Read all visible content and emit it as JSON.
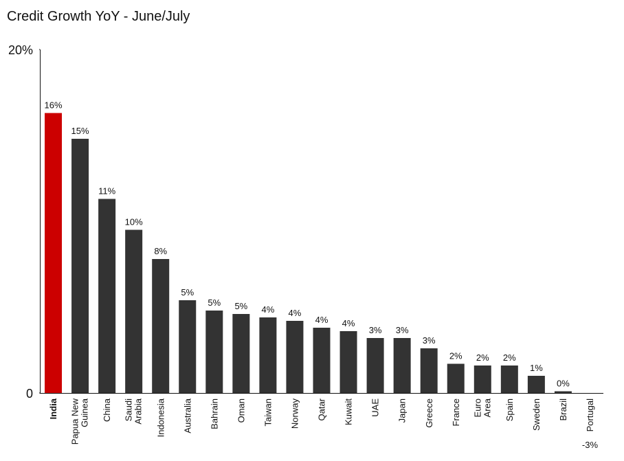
{
  "chart_data": {
    "type": "bar",
    "title": "Credit Growth YoY - June/July",
    "categories": [
      "India",
      "Papua New Guinea",
      "China",
      "Saudi Arabia",
      "Indonesia",
      "Australia",
      "Bahrain",
      "Oman",
      "Taiwan",
      "Norway",
      "Qatar",
      "Kuwait",
      "UAE",
      "Japan",
      "Greece",
      "France",
      "Euro Area",
      "Spain",
      "Sweden",
      "Brazil",
      "Portugal"
    ],
    "values": [
      16.3,
      14.8,
      11.3,
      9.5,
      7.8,
      5.4,
      4.8,
      4.6,
      4.4,
      4.2,
      3.8,
      3.6,
      3.2,
      3.2,
      2.6,
      1.7,
      1.6,
      1.6,
      1.0,
      0.1,
      -3
    ],
    "value_labels": [
      "16%",
      "15%",
      "11%",
      "10%",
      "8%",
      "5%",
      "5%",
      "5%",
      "4%",
      "4%",
      "4%",
      "4%",
      "3%",
      "3%",
      "3%",
      "2%",
      "2%",
      "2%",
      "1%",
      "0%",
      "-3%"
    ],
    "color": "#333333",
    "colors": [
      "#cc0000",
      "#333333",
      "#333333",
      "#333333",
      "#333333",
      "#333333",
      "#333333",
      "#333333",
      "#333333",
      "#333333",
      "#333333",
      "#333333",
      "#333333",
      "#333333",
      "#333333",
      "#333333",
      "#333333",
      "#333333",
      "#333333",
      "#333333",
      "#333333"
    ],
    "ylim": [
      0,
      20
    ],
    "yticks": [
      0,
      {
        "value": 20,
        "label": "20%"
      }
    ],
    "grid": false
  }
}
